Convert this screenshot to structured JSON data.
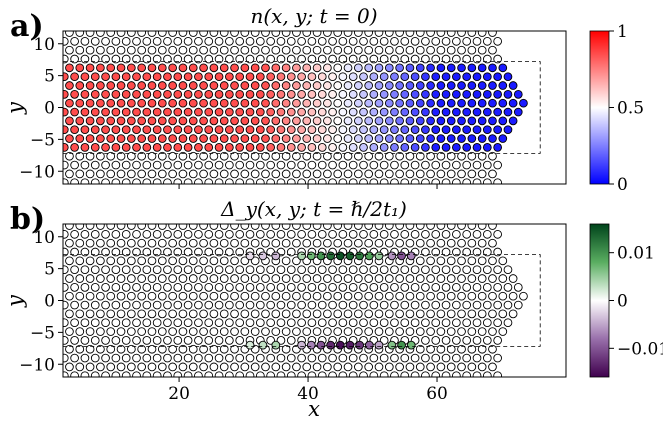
{
  "chart_data": [
    {
      "type": "heatmap",
      "panel_label": "a)",
      "title": "n(x, y; t = 0)",
      "xlabel": "",
      "ylabel": "y",
      "xlim": [
        2,
        80
      ],
      "ylim": [
        -12,
        12
      ],
      "xticks": [
        20,
        40,
        60
      ],
      "xtick_labels": [
        "",
        "",
        ""
      ],
      "yticks": [
        10,
        5,
        0,
        -5,
        -10
      ],
      "ytick_labels": [
        "10",
        "5",
        "0",
        "−5",
        "−10"
      ],
      "colorbar": {
        "min": 0,
        "max": 1,
        "ticks": [
          1,
          0.5,
          0
        ],
        "tick_labels": [
          "1",
          "0.5",
          "0"
        ],
        "colors": [
          "#0000ff",
          "#ffffff",
          "#ff0000"
        ]
      },
      "lattice": "honeycomb, sites colored inside the dashed region",
      "dashed_region": {
        "x": [
          2,
          76
        ],
        "y": [
          -7.2,
          7.2
        ]
      },
      "density_profile": {
        "left_value": 0.85,
        "right_value": 0.05,
        "transition_x": [
          33,
          60
        ]
      }
    },
    {
      "type": "heatmap",
      "panel_label": "b)",
      "title": "Δ_y(x, y; t = ℏ/2t₁)",
      "xlabel": "x",
      "ylabel": "y",
      "xlim": [
        2,
        80
      ],
      "ylim": [
        -12,
        12
      ],
      "xticks": [
        20,
        40,
        60
      ],
      "xtick_labels": [
        "20",
        "40",
        "60"
      ],
      "yticks": [
        10,
        5,
        0,
        -5,
        -10
      ],
      "ytick_labels": [
        "10",
        "5",
        "0",
        "−5",
        "−10"
      ],
      "colorbar": {
        "min": -0.016,
        "max": 0.016,
        "ticks": [
          0.01,
          0,
          -0.01
        ],
        "tick_labels": [
          "0.01",
          "0",
          "−0.01"
        ],
        "colors": [
          "#3f004d",
          "#ffffff",
          "#00441b"
        ]
      },
      "dashed_region": {
        "x": [
          2,
          76
        ],
        "y": [
          -7.2,
          7.2
        ]
      },
      "edge_currents": {
        "top_row": [
          {
            "x": 31,
            "v": -0.002
          },
          {
            "x": 33,
            "v": -0.003
          },
          {
            "x": 35,
            "v": -0.004
          },
          {
            "x": 39,
            "v": 0.004
          },
          {
            "x": 40.5,
            "v": 0.007
          },
          {
            "x": 42,
            "v": 0.01
          },
          {
            "x": 43.5,
            "v": 0.013
          },
          {
            "x": 45,
            "v": 0.015
          },
          {
            "x": 46.5,
            "v": 0.014
          },
          {
            "x": 48,
            "v": 0.012
          },
          {
            "x": 49.5,
            "v": 0.009
          },
          {
            "x": 51,
            "v": 0.005
          },
          {
            "x": 53,
            "v": -0.006
          },
          {
            "x": 54.5,
            "v": -0.01
          },
          {
            "x": 56,
            "v": -0.007
          }
        ],
        "bottom_row": [
          {
            "x": 31,
            "v": 0.002
          },
          {
            "x": 33,
            "v": 0.003
          },
          {
            "x": 35,
            "v": 0.004
          },
          {
            "x": 39,
            "v": -0.004
          },
          {
            "x": 40.5,
            "v": -0.007
          },
          {
            "x": 42,
            "v": -0.01
          },
          {
            "x": 43.5,
            "v": -0.013
          },
          {
            "x": 45,
            "v": -0.015
          },
          {
            "x": 46.5,
            "v": -0.014
          },
          {
            "x": 48,
            "v": -0.012
          },
          {
            "x": 49.5,
            "v": -0.009
          },
          {
            "x": 51,
            "v": -0.005
          },
          {
            "x": 53,
            "v": 0.006
          },
          {
            "x": 54.5,
            "v": 0.01
          },
          {
            "x": 56,
            "v": 0.007
          }
        ]
      }
    }
  ]
}
